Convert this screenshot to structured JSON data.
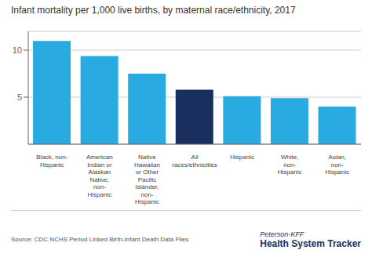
{
  "chart_data": {
    "type": "bar",
    "title": "Infant mortality per 1,000 live births, by maternal race/ethnicity, 2017",
    "categories": [
      "Black, non-\nHispanic",
      "American\nIndian or\nAlaskan\nNative,\nnon-\nHispanic",
      "Native\nHawaiian\nor Other\nPacific\nIslander,\nnon-\nHispanic",
      "All\nraces/ethnicities",
      "Hispanic",
      "White,\nnon-\nHispanic",
      "Asian,\nnon-\nHispanic"
    ],
    "values": [
      10.97,
      9.38,
      7.5,
      5.8,
      5.1,
      4.9,
      4.0
    ],
    "colors": [
      "#29abe2",
      "#29abe2",
      "#29abe2",
      "#1b2f5e",
      "#29abe2",
      "#29abe2",
      "#29abe2"
    ],
    "ylim": [
      0,
      12
    ],
    "yticks": [
      5,
      10
    ],
    "grid": true,
    "annotations": [
      "Source: CDC NCHS Period Linked Birth-Infant Death Data Files",
      "Peterson-KFF",
      "Health System Tracker"
    ]
  }
}
